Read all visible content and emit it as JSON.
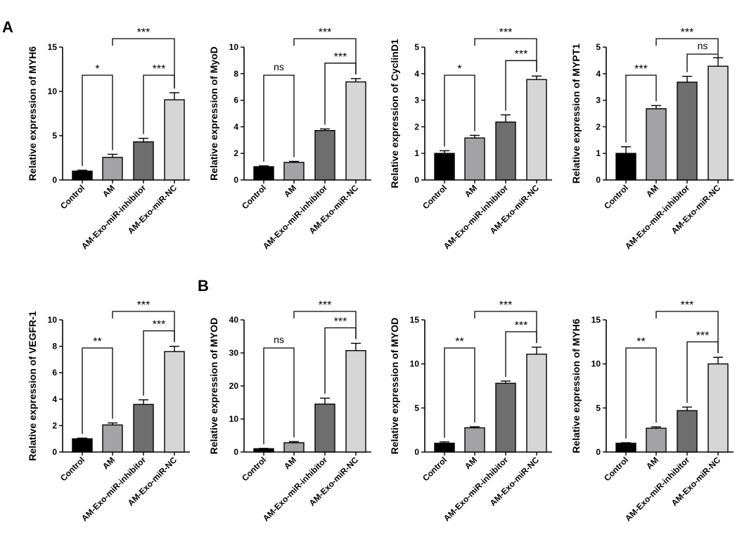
{
  "figure": {
    "panel_labels": [
      "A",
      "B"
    ]
  },
  "colors": {
    "control": "#000000",
    "am": "#a3a3a6",
    "inhibitor": "#6e6e6e",
    "nc": "#d6d6d6",
    "axis": "#000000"
  },
  "chart_data": [
    {
      "type": "bar",
      "title": "",
      "ylabel": "Relative  expression of MYH6",
      "categories": [
        "Control",
        "AM",
        "AM-Exo-miR-inhibitor",
        "AM-Exo-miR-NC"
      ],
      "values": [
        1.0,
        2.55,
        4.3,
        9.05
      ],
      "errors": [
        0.1,
        0.35,
        0.4,
        0.8
      ],
      "ylim": [
        0,
        15
      ],
      "yticks": [
        0,
        5,
        10,
        15
      ],
      "comparisons": [
        {
          "from": 0,
          "to": 1,
          "label": "*"
        },
        {
          "from": 2,
          "to": 3,
          "label": "***"
        },
        {
          "from": 1,
          "to": 3,
          "label": "***"
        }
      ]
    },
    {
      "type": "bar",
      "title": "",
      "ylabel": "Relative  expression of MyoD",
      "categories": [
        "Control",
        "AM",
        "AM-Exo-miR-inhibitor",
        "AM-Exo-miR-NC"
      ],
      "values": [
        1.0,
        1.32,
        3.72,
        7.38
      ],
      "errors": [
        0.06,
        0.08,
        0.12,
        0.25
      ],
      "ylim": [
        0,
        10
      ],
      "yticks": [
        0,
        2,
        4,
        6,
        8,
        10
      ],
      "comparisons": [
        {
          "from": 0,
          "to": 1,
          "label": "ns"
        },
        {
          "from": 2,
          "to": 3,
          "label": "***"
        },
        {
          "from": 1,
          "to": 3,
          "label": "***"
        }
      ]
    },
    {
      "type": "bar",
      "title": "",
      "ylabel": "Relative  expression of CyclinD1",
      "categories": [
        "Control",
        "AM",
        "AM-Exo-miR-inhibitor",
        "AM-Exo-miR-NC"
      ],
      "values": [
        1.0,
        1.58,
        2.18,
        3.78
      ],
      "errors": [
        0.1,
        0.1,
        0.27,
        0.13
      ],
      "ylim": [
        0,
        5
      ],
      "yticks": [
        0,
        1,
        2,
        3,
        4,
        5
      ],
      "comparisons": [
        {
          "from": 0,
          "to": 1,
          "label": "*"
        },
        {
          "from": 2,
          "to": 3,
          "label": "***"
        },
        {
          "from": 1,
          "to": 3,
          "label": "***"
        }
      ]
    },
    {
      "type": "bar",
      "title": "",
      "ylabel": "Relative  expression of MYPT1",
      "categories": [
        "Control",
        "AM",
        "AM-Exo-miR-inhibitor",
        "AM-Exo-miR-NC"
      ],
      "values": [
        1.0,
        2.68,
        3.68,
        4.28
      ],
      "errors": [
        0.25,
        0.12,
        0.22,
        0.32
      ],
      "ylim": [
        0,
        5
      ],
      "yticks": [
        0,
        1,
        2,
        3,
        4,
        5
      ],
      "comparisons": [
        {
          "from": 0,
          "to": 1,
          "label": "***"
        },
        {
          "from": 2,
          "to": 3,
          "label": "ns"
        },
        {
          "from": 1,
          "to": 3,
          "label": "***"
        }
      ]
    },
    {
      "type": "bar",
      "title": "",
      "ylabel": "Relative  expression of VEGFR-1",
      "categories": [
        "Control",
        "AM",
        "AM-Exo-miR-inhibitor",
        "AM-Exo-miR-NC"
      ],
      "values": [
        1.0,
        2.05,
        3.6,
        7.6
      ],
      "errors": [
        0.05,
        0.15,
        0.35,
        0.4
      ],
      "ylim": [
        0,
        10
      ],
      "yticks": [
        0,
        2,
        4,
        6,
        8,
        10
      ],
      "comparisons": [
        {
          "from": 0,
          "to": 1,
          "label": "**"
        },
        {
          "from": 2,
          "to": 3,
          "label": "***"
        },
        {
          "from": 1,
          "to": 3,
          "label": "***"
        }
      ]
    },
    {
      "type": "bar",
      "title": "",
      "ylabel": "Relative  expression of MYOD",
      "categories": [
        "Control",
        "AM",
        "AM-Exo-miR-inhibitor",
        "AM-Exo-miR-NC"
      ],
      "values": [
        1.0,
        2.8,
        14.5,
        30.7
      ],
      "errors": [
        0.1,
        0.35,
        1.8,
        2.2
      ],
      "ylim": [
        0,
        40
      ],
      "yticks": [
        0,
        10,
        20,
        30,
        40
      ],
      "comparisons": [
        {
          "from": 0,
          "to": 1,
          "label": "ns"
        },
        {
          "from": 2,
          "to": 3,
          "label": "***"
        },
        {
          "from": 1,
          "to": 3,
          "label": "***"
        }
      ]
    },
    {
      "type": "bar",
      "title": "",
      "ylabel": "Relative  expression of MYOD",
      "categories": [
        "Control",
        "AM",
        "AM-Exo-miR-inhibitor",
        "AM-Exo-miR-NC"
      ],
      "values": [
        1.0,
        2.75,
        7.8,
        11.1
      ],
      "errors": [
        0.15,
        0.12,
        0.25,
        0.8
      ],
      "ylim": [
        0,
        15
      ],
      "yticks": [
        0,
        5,
        10,
        15
      ],
      "comparisons": [
        {
          "from": 0,
          "to": 1,
          "label": "**"
        },
        {
          "from": 2,
          "to": 3,
          "label": "***"
        },
        {
          "from": 1,
          "to": 3,
          "label": "***"
        }
      ]
    },
    {
      "type": "bar",
      "title": "",
      "ylabel": "Relative  expression of MYH6",
      "categories": [
        "Control",
        "AM",
        "AM-Exo-miR-inhibitor",
        "AM-Exo-miR-NC"
      ],
      "values": [
        1.0,
        2.7,
        4.7,
        10.0
      ],
      "errors": [
        0.05,
        0.15,
        0.4,
        0.75
      ],
      "ylim": [
        0,
        15
      ],
      "yticks": [
        0,
        5,
        10,
        15
      ],
      "comparisons": [
        {
          "from": 0,
          "to": 1,
          "label": "**"
        },
        {
          "from": 2,
          "to": 3,
          "label": "***"
        },
        {
          "from": 1,
          "to": 3,
          "label": "***"
        }
      ]
    }
  ]
}
